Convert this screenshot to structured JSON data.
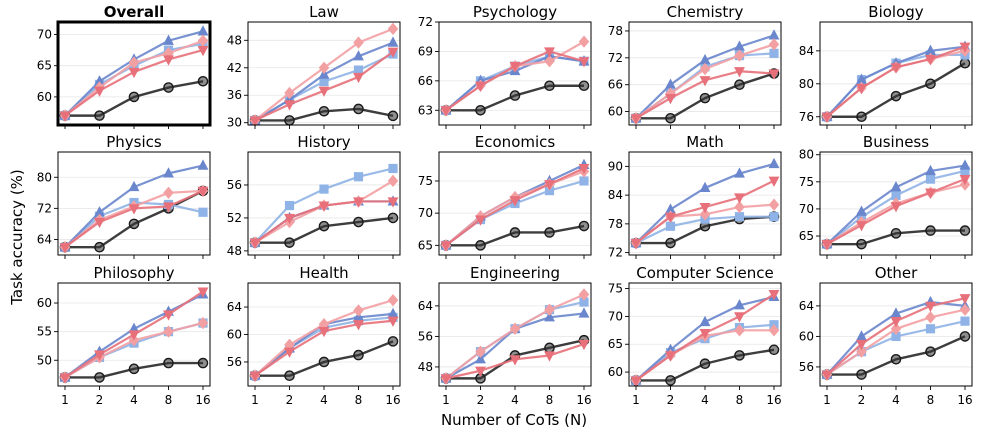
{
  "chart_data": {
    "type": "line",
    "xlabel": "Number of CoTs (N)",
    "ylabel": "Task accuracy (%)",
    "x": [
      1,
      2,
      4,
      8,
      16
    ],
    "series_styles": [
      {
        "id": "s_gray",
        "color": "#333333",
        "marker": "circle"
      },
      {
        "id": "s_lblue",
        "color": "#8fb3e6",
        "marker": "square"
      },
      {
        "id": "s_blue",
        "color": "#6a86cc",
        "marker": "triangle-up"
      },
      {
        "id": "s_pink",
        "color": "#f3a0a3",
        "marker": "diamond"
      },
      {
        "id": "s_red",
        "color": "#e7707a",
        "marker": "triangle-down"
      }
    ],
    "panels": [
      {
        "title": "Overall",
        "bold": true,
        "highlight": true,
        "ylim": [
          55.5,
          72
        ],
        "yticks": [
          60,
          65,
          70
        ],
        "ylabels": [
          "60",
          "65",
          "70"
        ],
        "series": [
          [
            57,
            57,
            60,
            61.5,
            62.5
          ],
          [
            57,
            62,
            65,
            67.5,
            68.5
          ],
          [
            57,
            62.5,
            66,
            69,
            70.5
          ],
          [
            57,
            61.5,
            65.5,
            67,
            69
          ],
          [
            57,
            61,
            64,
            66,
            67.5
          ]
        ]
      },
      {
        "title": "Law",
        "ylim": [
          29.5,
          52
        ],
        "yticks": [
          30,
          36,
          42,
          48
        ],
        "ylabels": [
          "30",
          "36",
          "42",
          "48"
        ],
        "series": [
          [
            30.5,
            30.5,
            32.5,
            33,
            31.5
          ],
          [
            30.5,
            35,
            39,
            41.5,
            45
          ],
          [
            30.5,
            35,
            40.5,
            44.5,
            47.5
          ],
          [
            30.5,
            36.5,
            42,
            47.5,
            50.5
          ],
          [
            30.5,
            34,
            37,
            40,
            45.5
          ]
        ]
      },
      {
        "title": "Psychology",
        "ylim": [
          61.5,
          72
        ],
        "yticks": [
          63,
          66,
          69,
          72
        ],
        "ylabels": [
          "63",
          "66",
          "69",
          "72"
        ],
        "series": [
          [
            63,
            63,
            64.5,
            65.5,
            65.5
          ],
          [
            63,
            66,
            67.5,
            68.5,
            68
          ],
          [
            63,
            66,
            67,
            68.5,
            68
          ],
          [
            63,
            65.5,
            67.5,
            68,
            70
          ],
          [
            63,
            65.5,
            67.5,
            69,
            68
          ]
        ]
      },
      {
        "title": "Chemistry",
        "ylim": [
          57,
          80
        ],
        "yticks": [
          60,
          66,
          72,
          78
        ],
        "ylabels": [
          "60",
          "66",
          "72",
          "78"
        ],
        "series": [
          [
            58.5,
            58.5,
            63,
            66,
            68.5
          ],
          [
            58.5,
            64,
            70,
            72.5,
            73
          ],
          [
            58.5,
            66,
            71.5,
            74.5,
            77
          ],
          [
            58.5,
            64,
            69.5,
            72.5,
            75
          ],
          [
            58.5,
            63,
            67,
            69,
            68.5
          ]
        ]
      },
      {
        "title": "Biology",
        "ylim": [
          75,
          87.5
        ],
        "yticks": [
          76,
          80,
          84
        ],
        "ylabels": [
          "76",
          "80",
          "84"
        ],
        "series": [
          [
            76,
            76,
            78.5,
            80,
            82.5
          ],
          [
            76,
            80.5,
            82.5,
            83.5,
            83.5
          ],
          [
            76,
            80.5,
            82.5,
            84,
            84.5
          ],
          [
            76,
            79.5,
            82,
            83,
            84
          ],
          [
            76,
            79.5,
            82,
            83,
            84.5
          ]
        ]
      },
      {
        "title": "Physics",
        "ylim": [
          60,
          86.5
        ],
        "yticks": [
          64,
          72,
          80
        ],
        "ylabels": [
          "64",
          "72",
          "80"
        ],
        "series": [
          [
            62,
            62,
            68,
            72,
            76.5
          ],
          [
            62,
            70,
            73.5,
            73,
            71
          ],
          [
            62,
            71,
            77.5,
            81,
            83
          ],
          [
            62,
            69,
            72.5,
            76,
            76.5
          ],
          [
            62,
            68.5,
            72,
            72.5,
            76.5
          ]
        ]
      },
      {
        "title": "History",
        "ylim": [
          47.5,
          60
        ],
        "yticks": [
          48,
          52,
          56
        ],
        "ylabels": [
          "48",
          "52",
          "56"
        ],
        "series": [
          [
            49,
            49,
            51,
            51.5,
            52
          ],
          [
            49,
            53.5,
            55.5,
            57,
            58
          ],
          [
            49,
            52,
            53.5,
            54,
            54
          ],
          [
            49,
            51.5,
            53.5,
            54,
            56.5
          ],
          [
            49,
            52,
            53.5,
            54,
            54
          ]
        ]
      },
      {
        "title": "Economics",
        "ylim": [
          63.5,
          79.5
        ],
        "yticks": [
          65,
          70,
          75
        ],
        "ylabels": [
          "65",
          "70",
          "75"
        ],
        "series": [
          [
            65,
            65,
            67,
            67,
            68
          ],
          [
            65,
            69,
            71.5,
            73.5,
            75
          ],
          [
            65,
            69.5,
            72.5,
            75,
            77.5
          ],
          [
            65,
            69.5,
            72.5,
            74.5,
            76.5
          ],
          [
            65,
            69,
            72,
            74.5,
            77
          ]
        ]
      },
      {
        "title": "Math",
        "ylim": [
          71.5,
          93
        ],
        "yticks": [
          72,
          78,
          84,
          90
        ],
        "ylabels": [
          "72",
          "78",
          "84",
          "90"
        ],
        "series": [
          [
            74,
            74,
            77.5,
            79,
            79.5
          ],
          [
            74,
            77.5,
            79,
            79.5,
            79.5
          ],
          [
            74,
            81,
            85.5,
            88.5,
            90.5
          ],
          [
            74,
            79.5,
            80,
            81.5,
            82
          ],
          [
            74,
            79.5,
            81.5,
            83.5,
            87
          ]
        ]
      },
      {
        "title": "Business",
        "ylim": [
          61.5,
          80.5
        ],
        "yticks": [
          65,
          70,
          75,
          80
        ],
        "ylabels": [
          "65",
          "70",
          "75",
          "80"
        ],
        "series": [
          [
            63.5,
            63.5,
            65.5,
            66,
            66
          ],
          [
            63.5,
            68.5,
            72.5,
            75.5,
            77
          ],
          [
            63.5,
            69.5,
            74,
            77,
            78
          ],
          [
            63.5,
            67.5,
            71,
            73,
            74.5
          ],
          [
            63.5,
            67,
            70.5,
            73,
            75.5
          ]
        ]
      },
      {
        "title": "Philosophy",
        "ylim": [
          45.5,
          63.5
        ],
        "yticks": [
          50,
          55,
          60
        ],
        "ylabels": [
          "50",
          "55",
          "60"
        ],
        "series": [
          [
            47,
            47,
            48.5,
            49.5,
            49.5
          ],
          [
            47,
            50.5,
            53,
            55,
            56.5
          ],
          [
            47,
            51.5,
            55.5,
            58.5,
            61.5
          ],
          [
            47,
            50.5,
            53.5,
            55,
            56.5
          ],
          [
            47,
            51,
            54.5,
            58,
            62
          ]
        ]
      },
      {
        "title": "Health",
        "ylim": [
          52.5,
          67.5
        ],
        "yticks": [
          56,
          60,
          64
        ],
        "ylabels": [
          "56",
          "60",
          "64"
        ],
        "series": [
          [
            54,
            54,
            56,
            57,
            59
          ],
          [
            54,
            58,
            61,
            62,
            62.5
          ],
          [
            54,
            58,
            61.5,
            62.5,
            63
          ],
          [
            54,
            58.5,
            61.5,
            63.5,
            65
          ],
          [
            54,
            57.5,
            60.5,
            61.5,
            62
          ]
        ]
      },
      {
        "title": "Engineering",
        "ylim": [
          43,
          70
        ],
        "yticks": [
          48,
          56,
          64
        ],
        "ylabels": [
          "48",
          "56",
          "64"
        ],
        "series": [
          [
            45,
            45,
            51,
            53,
            55
          ],
          [
            45,
            52,
            58,
            63,
            65
          ],
          [
            45,
            50,
            58,
            61,
            62
          ],
          [
            45,
            52,
            58,
            63,
            67
          ],
          [
            45,
            47,
            50,
            51,
            54
          ]
        ]
      },
      {
        "title": "Computer Science",
        "ylim": [
          57.5,
          76
        ],
        "yticks": [
          60,
          65,
          70,
          75
        ],
        "ylabels": [
          "60",
          "65",
          "70",
          "75"
        ],
        "series": [
          [
            58.5,
            58.5,
            61.5,
            63,
            64
          ],
          [
            58.5,
            63.5,
            66,
            68,
            68.5
          ],
          [
            58.5,
            64,
            69,
            72,
            73.5
          ],
          [
            58.5,
            63,
            66.5,
            67.5,
            67.5
          ],
          [
            58.5,
            63,
            67,
            70,
            74
          ]
        ]
      },
      {
        "title": "Other",
        "ylim": [
          53.5,
          67
        ],
        "yticks": [
          56,
          60,
          64
        ],
        "ylabels": [
          "56",
          "60",
          "64"
        ],
        "series": [
          [
            55,
            55,
            57,
            58,
            60
          ],
          [
            55,
            58,
            60,
            61,
            62
          ],
          [
            55,
            60,
            63,
            64.5,
            64
          ],
          [
            55,
            58,
            61,
            62.5,
            63.5
          ],
          [
            55,
            59,
            62,
            64,
            65
          ]
        ]
      }
    ]
  }
}
